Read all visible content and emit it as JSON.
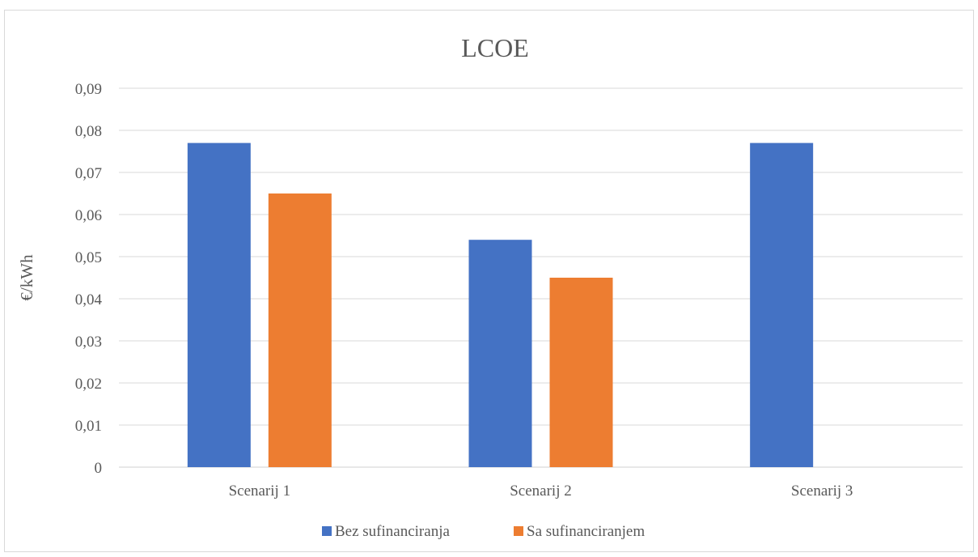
{
  "chart_data": {
    "type": "bar",
    "title": "LCOE",
    "xlabel": "",
    "ylabel": "€/kWh",
    "categories": [
      "Scenarij 1",
      "Scenarij 2",
      "Scenarij 3"
    ],
    "series": [
      {
        "name": "Bez sufinanciranja",
        "color": "#4472c4",
        "values": [
          0.077,
          0.054,
          0.077
        ]
      },
      {
        "name": "Sa sufinanciranjem",
        "color": "#ed7d31",
        "values": [
          0.065,
          0.045,
          null
        ]
      }
    ],
    "ylim": [
      0,
      0.09
    ],
    "yticks": [
      0,
      0.01,
      0.02,
      0.03,
      0.04,
      0.05,
      0.06,
      0.07,
      0.08,
      0.09
    ],
    "ytick_labels": [
      "0",
      "0,01",
      "0,02",
      "0,03",
      "0,04",
      "0,05",
      "0,06",
      "0,07",
      "0,08",
      "0,09"
    ],
    "grid": true,
    "legend_position": "bottom"
  }
}
